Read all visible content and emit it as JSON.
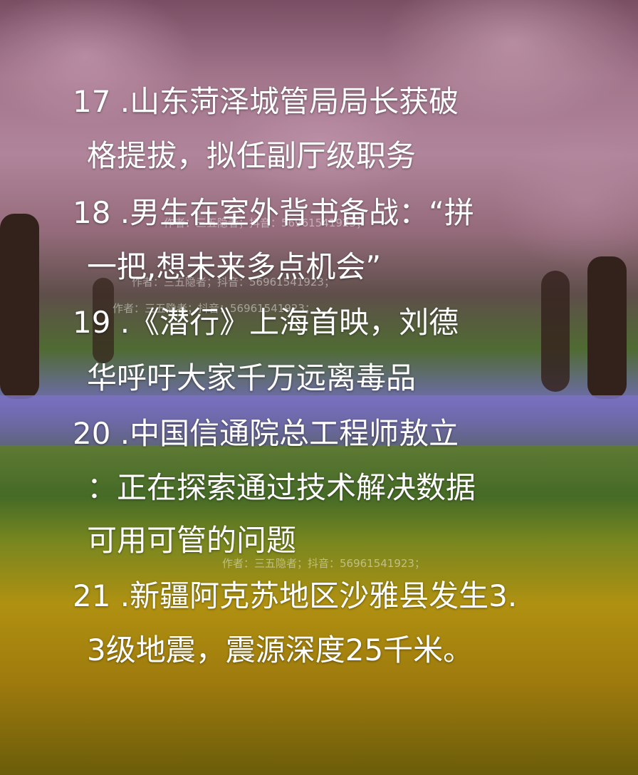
{
  "items": [
    {
      "lines": [
        "17 .山东菏泽城管局局长获破",
        "格提拔，拟任副厅级职务"
      ]
    },
    {
      "lines": [
        "18 .男生在室外背书备战：“拼",
        "一把,想未来多点机会”"
      ]
    },
    {
      "lines": [
        "19 .《潜行》上海首映，刘德",
        "华呼吁大家千万远离毒品"
      ]
    },
    {
      "lines": [
        "20 .中国信通院总工程师敖立",
        "：正在探索通过技术解决数据",
        "可用可管的问题"
      ]
    },
    {
      "lines": [
        "21 .新疆阿克苏地区沙雅县发生3.",
        "3级地震，震源深度25千米。"
      ]
    }
  ],
  "watermark": "作者：三五隐者；抖音：56961541923；"
}
